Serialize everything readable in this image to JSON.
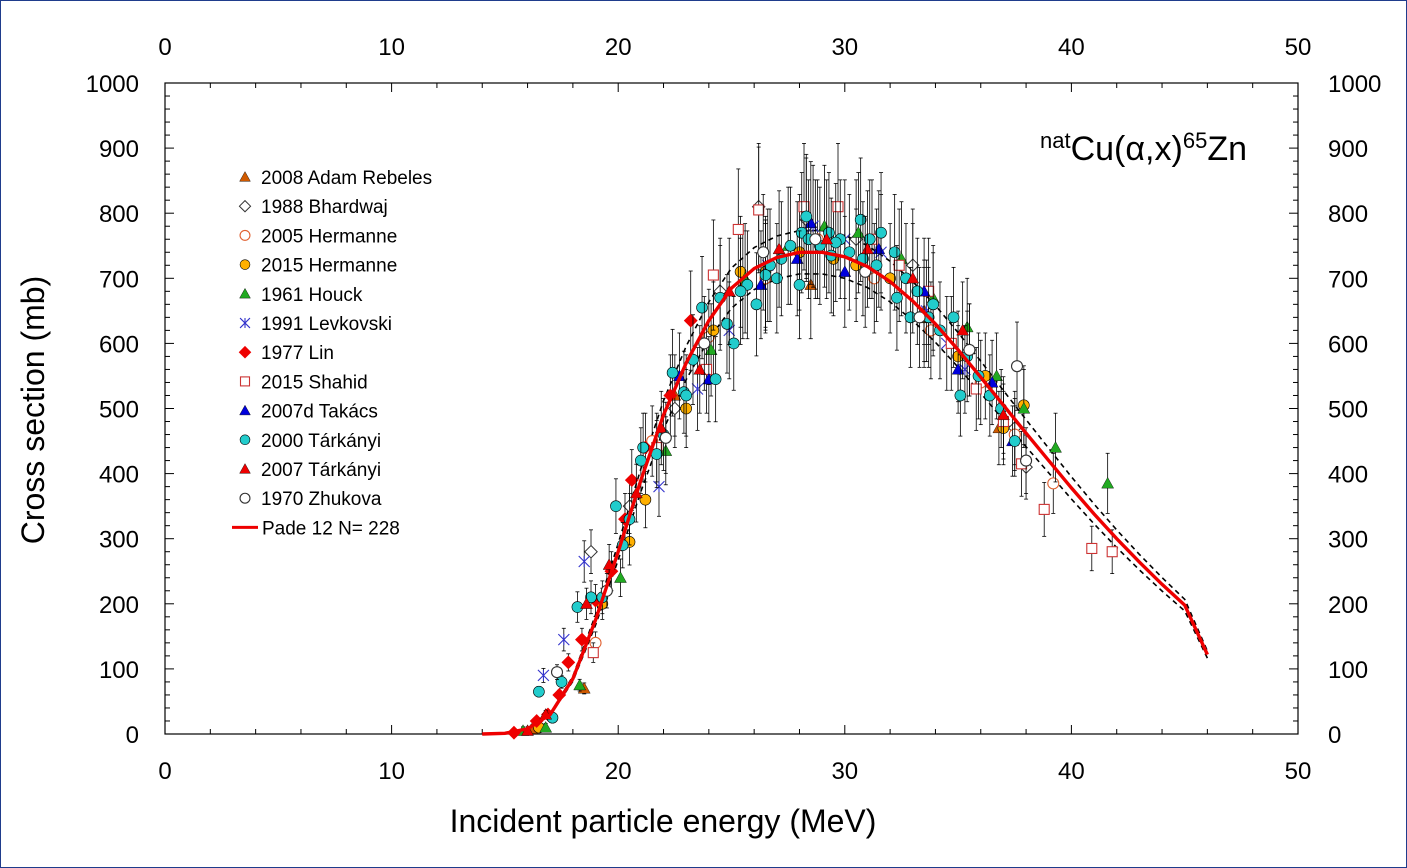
{
  "chart_data": {
    "type": "scatter",
    "title": "",
    "xlabel": "Incident particle energy  (MeV)",
    "ylabel": "Cross section (mb)",
    "xlim": [
      0,
      50
    ],
    "ylim": [
      0,
      1000
    ],
    "x_ticks": [
      "0",
      "10",
      "20",
      "30",
      "40",
      "50"
    ],
    "y_ticks": [
      "0",
      "100",
      "200",
      "300",
      "400",
      "500",
      "600",
      "700",
      "800",
      "900",
      "1000"
    ],
    "grid": false,
    "legend_position": "top-left",
    "annotation": {
      "prefix_sup": "nat",
      "base": "Cu(",
      "alpha": "α",
      "mid": ",x)",
      "product_sup": "65",
      "product": "Zn"
    },
    "series": [
      {
        "name": "2008 Adam Rebeles",
        "marker": "triangle",
        "color": "#d05a00",
        "filled": true,
        "points": [
          [
            16.2,
            8
          ],
          [
            18.5,
            70
          ],
          [
            22.5,
            520
          ],
          [
            25.5,
            690
          ],
          [
            28.5,
            690
          ],
          [
            33.5,
            650
          ],
          [
            36.8,
            470
          ]
        ]
      },
      {
        "name": "1988 Bhardwaj",
        "marker": "diamond",
        "color": "#333333",
        "filled": false,
        "points": [
          [
            18.8,
            280
          ],
          [
            20.5,
            350
          ],
          [
            22.5,
            500
          ],
          [
            24.5,
            680
          ],
          [
            26.2,
            810
          ],
          [
            28.3,
            790
          ],
          [
            30.5,
            760
          ],
          [
            33.0,
            720
          ],
          [
            35.5,
            590
          ],
          [
            37.5,
            470
          ],
          [
            38.0,
            410
          ]
        ]
      },
      {
        "name": "2005 Hermanne",
        "marker": "circle",
        "color": "#e06030",
        "filled": false,
        "points": [
          [
            19.0,
            140
          ],
          [
            21.5,
            450
          ],
          [
            24.0,
            610
          ],
          [
            26.5,
            700
          ],
          [
            28.8,
            760
          ],
          [
            31.3,
            700
          ],
          [
            33.8,
            620
          ],
          [
            36.0,
            540
          ],
          [
            37.5,
            460
          ],
          [
            39.2,
            385
          ]
        ]
      },
      {
        "name": "2015 Hermanne",
        "marker": "circle",
        "color": "#ffb000",
        "filled": true,
        "points": [
          [
            16.5,
            10
          ],
          [
            19.3,
            200
          ],
          [
            20.5,
            295
          ],
          [
            21.2,
            360
          ],
          [
            23.0,
            500
          ],
          [
            24.2,
            620
          ],
          [
            25.4,
            710
          ],
          [
            26.5,
            710
          ],
          [
            28.0,
            740
          ],
          [
            29.5,
            730
          ],
          [
            30.5,
            720
          ],
          [
            32.0,
            700
          ],
          [
            33.5,
            640
          ],
          [
            35.0,
            580
          ],
          [
            36.2,
            550
          ],
          [
            37.0,
            470
          ],
          [
            37.9,
            505
          ]
        ]
      },
      {
        "name": "1961 Houck",
        "marker": "triangle",
        "color": "#22aa22",
        "filled": true,
        "points": [
          [
            15.8,
            5
          ],
          [
            16.8,
            10
          ],
          [
            18.3,
            75
          ],
          [
            20.1,
            240
          ],
          [
            22.1,
            435
          ],
          [
            24.1,
            590
          ],
          [
            25.6,
            700
          ],
          [
            27.5,
            750
          ],
          [
            29.1,
            780
          ],
          [
            30.6,
            770
          ],
          [
            32.5,
            730
          ],
          [
            33.9,
            670
          ],
          [
            35.4,
            625
          ],
          [
            36.7,
            550
          ],
          [
            37.9,
            500
          ],
          [
            39.3,
            440
          ],
          [
            41.6,
            385
          ]
        ]
      },
      {
        "name": "1991 Levkovski",
        "marker": "cross",
        "color": "#3333cc",
        "filled": false,
        "points": [
          [
            16.7,
            90
          ],
          [
            17.6,
            145
          ],
          [
            18.5,
            265
          ],
          [
            21.8,
            380
          ],
          [
            23.5,
            530
          ],
          [
            24.9,
            620
          ],
          [
            26.6,
            720
          ],
          [
            28.6,
            780
          ],
          [
            30.0,
            760
          ],
          [
            31.6,
            740
          ],
          [
            33.6,
            650
          ],
          [
            34.5,
            600
          ],
          [
            35.3,
            560
          ]
        ]
      },
      {
        "name": "1977 Lin",
        "marker": "diamond",
        "color": "#ee0000",
        "filled": true,
        "points": [
          [
            15.4,
            2
          ],
          [
            16.4,
            20
          ],
          [
            16.9,
            30
          ],
          [
            17.4,
            60
          ],
          [
            17.8,
            110
          ],
          [
            18.4,
            145
          ],
          [
            19.0,
            205
          ],
          [
            19.7,
            250
          ],
          [
            20.3,
            330
          ],
          [
            20.6,
            390
          ],
          [
            21.2,
            440
          ],
          [
            22.3,
            520
          ],
          [
            23.2,
            635
          ]
        ]
      },
      {
        "name": "2015 Shahid",
        "marker": "square",
        "color": "#cc3333",
        "filled": false,
        "points": [
          [
            18.9,
            125
          ],
          [
            21.7,
            440
          ],
          [
            23.9,
            560
          ],
          [
            24.2,
            705
          ],
          [
            25.3,
            775
          ],
          [
            26.2,
            805
          ],
          [
            28.2,
            810
          ],
          [
            29.7,
            810
          ],
          [
            31.2,
            760
          ],
          [
            32.4,
            720
          ],
          [
            33.7,
            680
          ],
          [
            34.7,
            600
          ],
          [
            35.8,
            530
          ],
          [
            37.0,
            480
          ],
          [
            37.8,
            415
          ],
          [
            38.8,
            345
          ],
          [
            40.9,
            285
          ],
          [
            41.8,
            280
          ]
        ]
      },
      {
        "name": "2007d Takács",
        "marker": "triangle",
        "color": "#0000dd",
        "filled": true,
        "points": [
          [
            22.7,
            550
          ],
          [
            24.0,
            545
          ],
          [
            26.3,
            690
          ],
          [
            27.9,
            730
          ],
          [
            28.5,
            785
          ],
          [
            30.0,
            710
          ],
          [
            31.5,
            745
          ],
          [
            33.5,
            680
          ],
          [
            35.0,
            560
          ],
          [
            36.5,
            540
          ],
          [
            37.4,
            450
          ]
        ]
      },
      {
        "name": "2000 Tárkányi",
        "marker": "circle",
        "color": "#22cccc",
        "filled": true,
        "points": [
          [
            16.5,
            65
          ],
          [
            17.1,
            25
          ],
          [
            17.5,
            80
          ],
          [
            18.2,
            195
          ],
          [
            18.8,
            210
          ],
          [
            19.9,
            350
          ],
          [
            20.2,
            290
          ],
          [
            21.1,
            440
          ],
          [
            21.7,
            430
          ],
          [
            22.4,
            555
          ],
          [
            22.9,
            525
          ],
          [
            23.3,
            575
          ],
          [
            23.7,
            655
          ],
          [
            24.3,
            545
          ],
          [
            24.8,
            630
          ],
          [
            25.1,
            600
          ],
          [
            25.7,
            690
          ],
          [
            26.1,
            660
          ],
          [
            26.7,
            720
          ],
          [
            27.2,
            730
          ],
          [
            27.6,
            750
          ],
          [
            28.1,
            770
          ],
          [
            28.4,
            760
          ],
          [
            28.9,
            750
          ],
          [
            29.3,
            770
          ],
          [
            29.8,
            760
          ],
          [
            30.2,
            740
          ],
          [
            30.7,
            790
          ],
          [
            31.1,
            760
          ],
          [
            31.6,
            770
          ],
          [
            32.2,
            740
          ],
          [
            32.7,
            700
          ],
          [
            33.2,
            680
          ],
          [
            33.7,
            640
          ],
          [
            34.2,
            620
          ],
          [
            34.8,
            640
          ],
          [
            35.4,
            580
          ],
          [
            35.9,
            550
          ],
          [
            36.4,
            520
          ],
          [
            36.9,
            500
          ],
          [
            37.5,
            450
          ],
          [
            23.0,
            520
          ],
          [
            25.4,
            680
          ],
          [
            27.0,
            700
          ],
          [
            28.0,
            690
          ],
          [
            29.4,
            735
          ],
          [
            30.8,
            730
          ],
          [
            32.3,
            670
          ],
          [
            33.9,
            660
          ],
          [
            35.1,
            520
          ],
          [
            19.3,
            210
          ],
          [
            20.5,
            330
          ],
          [
            21.0,
            420
          ],
          [
            22.0,
            460
          ],
          [
            24.5,
            670
          ],
          [
            26.5,
            705
          ],
          [
            28.3,
            795
          ],
          [
            29.6,
            755
          ],
          [
            31.4,
            720
          ],
          [
            32.9,
            640
          ]
        ]
      },
      {
        "name": "2007 Tárkányi",
        "marker": "triangle",
        "color": "#ee0000",
        "filled": true,
        "points": [
          [
            16.0,
            5
          ],
          [
            16.8,
            30
          ],
          [
            18.6,
            200
          ],
          [
            19.6,
            260
          ],
          [
            20.8,
            370
          ],
          [
            21.9,
            470
          ],
          [
            23.6,
            560
          ],
          [
            24.9,
            680
          ],
          [
            27.1,
            745
          ],
          [
            29.2,
            760
          ],
          [
            31.0,
            745
          ],
          [
            33.0,
            700
          ],
          [
            35.2,
            620
          ],
          [
            37.0,
            490
          ]
        ]
      },
      {
        "name": "1970 Zhukova",
        "marker": "circle",
        "color": "#333333",
        "filled": false,
        "points": [
          [
            17.3,
            95
          ],
          [
            19.5,
            220
          ],
          [
            22.1,
            455
          ],
          [
            23.8,
            600
          ],
          [
            26.4,
            740
          ],
          [
            28.7,
            760
          ],
          [
            30.9,
            710
          ],
          [
            33.3,
            640
          ],
          [
            35.5,
            590
          ],
          [
            37.6,
            565
          ],
          [
            38.0,
            420
          ]
        ]
      },
      {
        "name": "Pade 12 N= 228",
        "line": true,
        "color": "#ee0000",
        "points": [
          [
            14,
            0
          ],
          [
            15,
            1
          ],
          [
            16,
            8
          ],
          [
            17,
            30
          ],
          [
            18,
            85
          ],
          [
            19,
            175
          ],
          [
            20,
            280
          ],
          [
            21,
            390
          ],
          [
            22,
            490
          ],
          [
            23,
            570
          ],
          [
            24,
            635
          ],
          [
            25,
            685
          ],
          [
            26,
            715
          ],
          [
            27,
            732
          ],
          [
            28,
            740
          ],
          [
            29,
            740
          ],
          [
            30,
            733
          ],
          [
            31,
            718
          ],
          [
            32,
            695
          ],
          [
            33,
            665
          ],
          [
            34,
            630
          ],
          [
            35,
            590
          ],
          [
            36,
            548
          ],
          [
            37,
            505
          ],
          [
            38,
            462
          ],
          [
            39,
            420
          ],
          [
            40,
            378
          ],
          [
            41,
            338
          ],
          [
            42,
            300
          ],
          [
            43,
            264
          ],
          [
            44,
            230
          ],
          [
            45,
            198
          ],
          [
            46,
            122
          ]
        ]
      }
    ]
  }
}
